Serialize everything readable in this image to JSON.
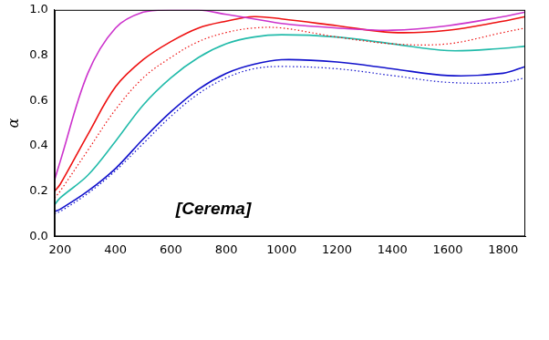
{
  "chart_data": {
    "type": "line",
    "y_label": "α",
    "annotations": [
      "[Cerema]"
    ],
    "x": [
      180,
      200,
      300,
      400,
      500,
      600,
      700,
      800,
      900,
      1000,
      1200,
      1400,
      1600,
      1800,
      1880
    ],
    "series": [
      {
        "color": "#cc33cc",
        "line_style": "solid",
        "marker": "none",
        "values": [
          0.25,
          0.33,
          0.72,
          0.92,
          0.99,
          1.0,
          1.0,
          0.98,
          0.96,
          0.94,
          0.92,
          0.91,
          0.93,
          0.97,
          0.99
        ]
      },
      {
        "color": "#ee1111",
        "line_style": "solid",
        "marker": "none",
        "values": [
          0.2,
          0.23,
          0.45,
          0.66,
          0.78,
          0.86,
          0.92,
          0.95,
          0.97,
          0.96,
          0.93,
          0.9,
          0.91,
          0.95,
          0.97
        ]
      },
      {
        "color": "#ee1111",
        "line_style": "dotted",
        "marker": "none",
        "values": [
          0.17,
          0.2,
          0.38,
          0.56,
          0.7,
          0.79,
          0.86,
          0.9,
          0.92,
          0.92,
          0.88,
          0.85,
          0.85,
          0.9,
          0.92
        ]
      },
      {
        "color": "#22bbaa",
        "line_style": "solid",
        "marker": "none",
        "values": [
          0.14,
          0.17,
          0.27,
          0.42,
          0.58,
          0.7,
          0.79,
          0.85,
          0.88,
          0.89,
          0.88,
          0.85,
          0.82,
          0.83,
          0.84
        ]
      },
      {
        "color": "#1111cc",
        "line_style": "solid",
        "marker": "none",
        "values": [
          0.11,
          0.12,
          0.2,
          0.3,
          0.43,
          0.55,
          0.65,
          0.72,
          0.76,
          0.78,
          0.77,
          0.74,
          0.71,
          0.72,
          0.75
        ]
      },
      {
        "color": "#1111cc",
        "line_style": "dotted",
        "marker": "none",
        "values": [
          0.1,
          0.11,
          0.19,
          0.29,
          0.41,
          0.53,
          0.63,
          0.7,
          0.74,
          0.75,
          0.74,
          0.71,
          0.68,
          0.68,
          0.7
        ]
      }
    ],
    "xlim": [
      180,
      1880
    ],
    "xticks": [
      200,
      400,
      600,
      800,
      1000,
      1200,
      1400,
      1600,
      1800
    ],
    "ylim": [
      0,
      1
    ],
    "yticks": [
      {
        "value": 0,
        "label": "0.0"
      },
      0.2,
      0.4,
      0.6,
      0.8,
      {
        "value": 1,
        "label": "1.0"
      }
    ],
    "grid": false
  }
}
